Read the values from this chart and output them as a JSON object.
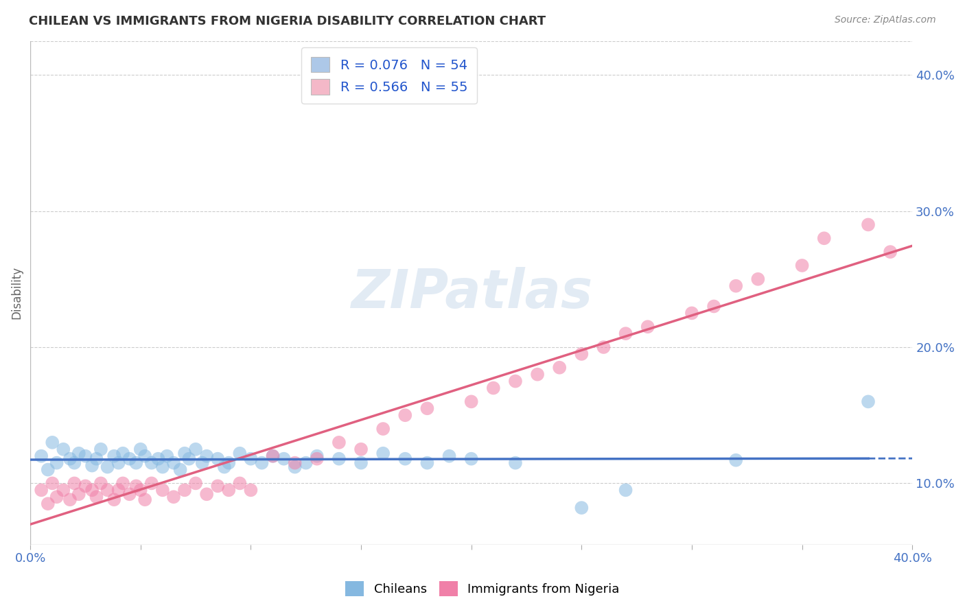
{
  "title": "CHILEAN VS IMMIGRANTS FROM NIGERIA DISABILITY CORRELATION CHART",
  "source_text": "Source: ZipAtlas.com",
  "ylabel": "Disability",
  "right_yticks": [
    "10.0%",
    "20.0%",
    "30.0%",
    "40.0%"
  ],
  "right_ytick_vals": [
    0.1,
    0.2,
    0.3,
    0.4
  ],
  "xmin": 0.0,
  "xmax": 0.4,
  "ymin": 0.055,
  "ymax": 0.425,
  "legend_entries": [
    {
      "label": "R = 0.076   N = 54",
      "color": "#adc8e8"
    },
    {
      "label": "R = 0.566   N = 55",
      "color": "#f4b8c8"
    }
  ],
  "legend_labels_bottom": [
    "Chileans",
    "Immigrants from Nigeria"
  ],
  "chilean_color": "#85b8e0",
  "nigeria_color": "#f080a8",
  "chilean_line_color": "#4472c4",
  "nigeria_line_color": "#e06080",
  "watermark": "ZIPatlas",
  "chilean_x": [
    0.005,
    0.008,
    0.01,
    0.012,
    0.015,
    0.018,
    0.02,
    0.022,
    0.025,
    0.028,
    0.03,
    0.032,
    0.035,
    0.038,
    0.04,
    0.042,
    0.045,
    0.048,
    0.05,
    0.052,
    0.055,
    0.058,
    0.06,
    0.062,
    0.065,
    0.068,
    0.07,
    0.072,
    0.075,
    0.078,
    0.08,
    0.085,
    0.088,
    0.09,
    0.095,
    0.1,
    0.105,
    0.11,
    0.115,
    0.12,
    0.125,
    0.13,
    0.14,
    0.15,
    0.16,
    0.17,
    0.18,
    0.19,
    0.2,
    0.22,
    0.25,
    0.27,
    0.32,
    0.38
  ],
  "chilean_y": [
    0.12,
    0.11,
    0.13,
    0.115,
    0.125,
    0.118,
    0.115,
    0.122,
    0.12,
    0.113,
    0.118,
    0.125,
    0.112,
    0.12,
    0.115,
    0.122,
    0.118,
    0.115,
    0.125,
    0.12,
    0.115,
    0.118,
    0.112,
    0.12,
    0.115,
    0.11,
    0.122,
    0.118,
    0.125,
    0.115,
    0.12,
    0.118,
    0.112,
    0.115,
    0.122,
    0.118,
    0.115,
    0.12,
    0.118,
    0.112,
    0.115,
    0.12,
    0.118,
    0.115,
    0.122,
    0.118,
    0.115,
    0.12,
    0.118,
    0.115,
    0.082,
    0.095,
    0.117,
    0.16
  ],
  "nigeria_x": [
    0.005,
    0.008,
    0.01,
    0.012,
    0.015,
    0.018,
    0.02,
    0.022,
    0.025,
    0.028,
    0.03,
    0.032,
    0.035,
    0.038,
    0.04,
    0.042,
    0.045,
    0.048,
    0.05,
    0.052,
    0.055,
    0.06,
    0.065,
    0.07,
    0.075,
    0.08,
    0.085,
    0.09,
    0.095,
    0.1,
    0.11,
    0.12,
    0.13,
    0.14,
    0.15,
    0.16,
    0.17,
    0.18,
    0.2,
    0.21,
    0.22,
    0.23,
    0.24,
    0.25,
    0.26,
    0.27,
    0.28,
    0.3,
    0.31,
    0.32,
    0.33,
    0.35,
    0.36,
    0.38,
    0.39
  ],
  "nigeria_y": [
    0.095,
    0.085,
    0.1,
    0.09,
    0.095,
    0.088,
    0.1,
    0.092,
    0.098,
    0.095,
    0.09,
    0.1,
    0.095,
    0.088,
    0.095,
    0.1,
    0.092,
    0.098,
    0.095,
    0.088,
    0.1,
    0.095,
    0.09,
    0.095,
    0.1,
    0.092,
    0.098,
    0.095,
    0.1,
    0.095,
    0.12,
    0.115,
    0.118,
    0.13,
    0.125,
    0.14,
    0.15,
    0.155,
    0.16,
    0.17,
    0.175,
    0.18,
    0.185,
    0.195,
    0.2,
    0.21,
    0.215,
    0.225,
    0.23,
    0.245,
    0.25,
    0.26,
    0.28,
    0.29,
    0.27
  ]
}
